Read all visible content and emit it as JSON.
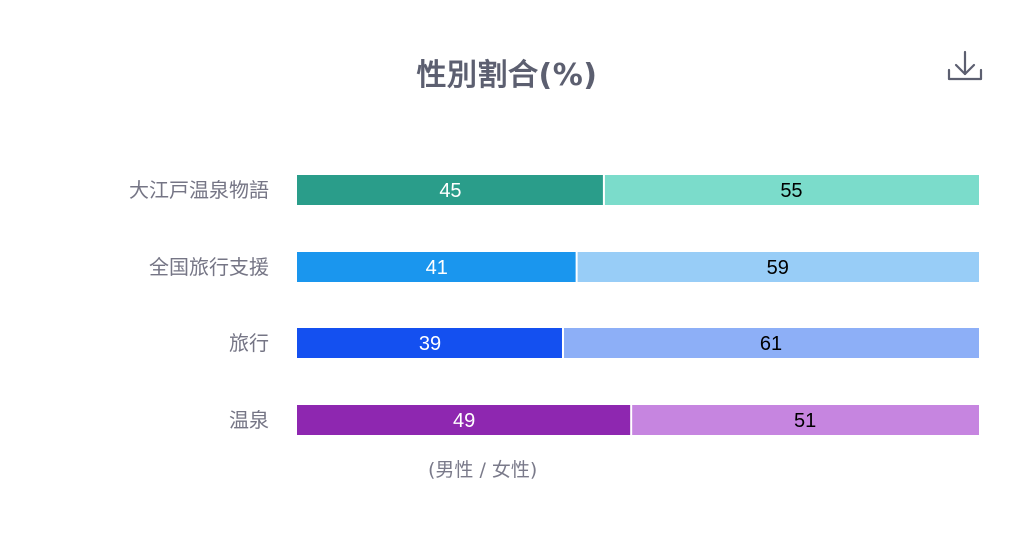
{
  "chart_data": {
    "type": "bar",
    "orientation": "horizontal",
    "stacked": true,
    "title": "性別割合(%)",
    "categories": [
      "大江戸温泉物語",
      "全国旅行支援",
      "旅行",
      "温泉"
    ],
    "series": [
      {
        "name": "男性",
        "values": [
          45,
          41,
          39,
          49
        ],
        "colors": [
          "#2a9d8a",
          "#1a96ee",
          "#1450f0",
          "#8e27b0"
        ],
        "label_color": "#ffffff"
      },
      {
        "name": "女性",
        "values": [
          55,
          59,
          61,
          51
        ],
        "colors": [
          "#7bdccb",
          "#98cdf7",
          "#8daff7",
          "#c685e0"
        ],
        "label_color": "#000000"
      }
    ],
    "xlim": [
      0,
      100
    ],
    "grid": false,
    "legend_text": "(男性 / 女性)"
  },
  "toolbar": {
    "download_icon": "download-icon"
  }
}
